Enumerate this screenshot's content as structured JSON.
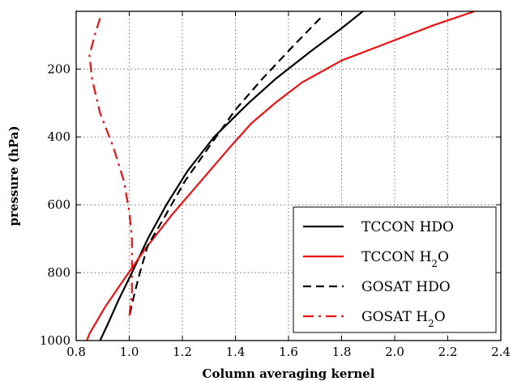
{
  "chart_data": {
    "type": "line",
    "xlabel": "Column averaging kernel",
    "ylabel": "pressure (hPa)",
    "xlim": [
      0.8,
      2.4
    ],
    "ylim": [
      1000,
      30
    ],
    "y_inverted": true,
    "grid": true,
    "x_ticks": [
      0.8,
      1.0,
      1.2,
      1.4,
      1.6,
      1.8,
      2.0,
      2.2,
      2.4
    ],
    "x_tick_labels": [
      "0.8",
      "1.0",
      "1.2",
      "1.4",
      "1.6",
      "1.8",
      "2.0",
      "2.2",
      "2.4"
    ],
    "y_ticks": [
      200,
      400,
      600,
      800,
      1000
    ],
    "y_tick_labels": [
      "200",
      "400",
      "600",
      "800",
      "1000"
    ],
    "legend_position": "lower-right",
    "series": [
      {
        "name": "TCCON HDO",
        "label_main": "TCCON HDO",
        "label_sub": "",
        "label_tail": "",
        "color": "#000000",
        "dash": "solid",
        "points": [
          [
            1.88,
            30
          ],
          [
            1.8,
            80
          ],
          [
            1.68,
            150
          ],
          [
            1.55,
            230
          ],
          [
            1.45,
            300
          ],
          [
            1.32,
            400
          ],
          [
            1.22,
            500
          ],
          [
            1.14,
            600
          ],
          [
            1.07,
            700
          ],
          [
            1.01,
            800
          ],
          [
            0.96,
            880
          ],
          [
            0.92,
            950
          ],
          [
            0.89,
            1000
          ]
        ]
      },
      {
        "name": "TCCON H2O",
        "label_main": "TCCON H",
        "label_sub": "2",
        "label_tail": "O",
        "color": "#ee1111",
        "dash": "solid",
        "points": [
          [
            2.3,
            30
          ],
          [
            2.15,
            70
          ],
          [
            1.95,
            130
          ],
          [
            1.8,
            175
          ],
          [
            1.65,
            240
          ],
          [
            1.55,
            300
          ],
          [
            1.46,
            360
          ],
          [
            1.38,
            430
          ],
          [
            1.27,
            530
          ],
          [
            1.16,
            630
          ],
          [
            1.06,
            730
          ],
          [
            0.98,
            820
          ],
          [
            0.91,
            900
          ],
          [
            0.85,
            980
          ],
          [
            0.84,
            1000
          ]
        ]
      },
      {
        "name": "GOSAT HDO",
        "label_main": "GOSAT HDO",
        "label_sub": "",
        "label_tail": "",
        "color": "#000000",
        "dash": "dashed",
        "points": [
          [
            1.72,
            50
          ],
          [
            1.62,
            130
          ],
          [
            1.5,
            230
          ],
          [
            1.4,
            320
          ],
          [
            1.3,
            430
          ],
          [
            1.21,
            530
          ],
          [
            1.13,
            640
          ],
          [
            1.07,
            720
          ],
          [
            1.04,
            800
          ],
          [
            1.02,
            860
          ],
          [
            1.0,
            930
          ]
        ]
      },
      {
        "name": "GOSAT H2O",
        "label_main": "GOSAT H",
        "label_sub": "2",
        "label_tail": "O",
        "color": "#ee1111",
        "dash": "dashdot",
        "points": [
          [
            0.89,
            50
          ],
          [
            0.87,
            100
          ],
          [
            0.85,
            160
          ],
          [
            0.86,
            230
          ],
          [
            0.89,
            330
          ],
          [
            0.94,
            430
          ],
          [
            0.98,
            530
          ],
          [
            1.0,
            620
          ],
          [
            1.01,
            700
          ],
          [
            1.01,
            780
          ],
          [
            1.01,
            860
          ],
          [
            1.0,
            930
          ]
        ]
      }
    ]
  }
}
